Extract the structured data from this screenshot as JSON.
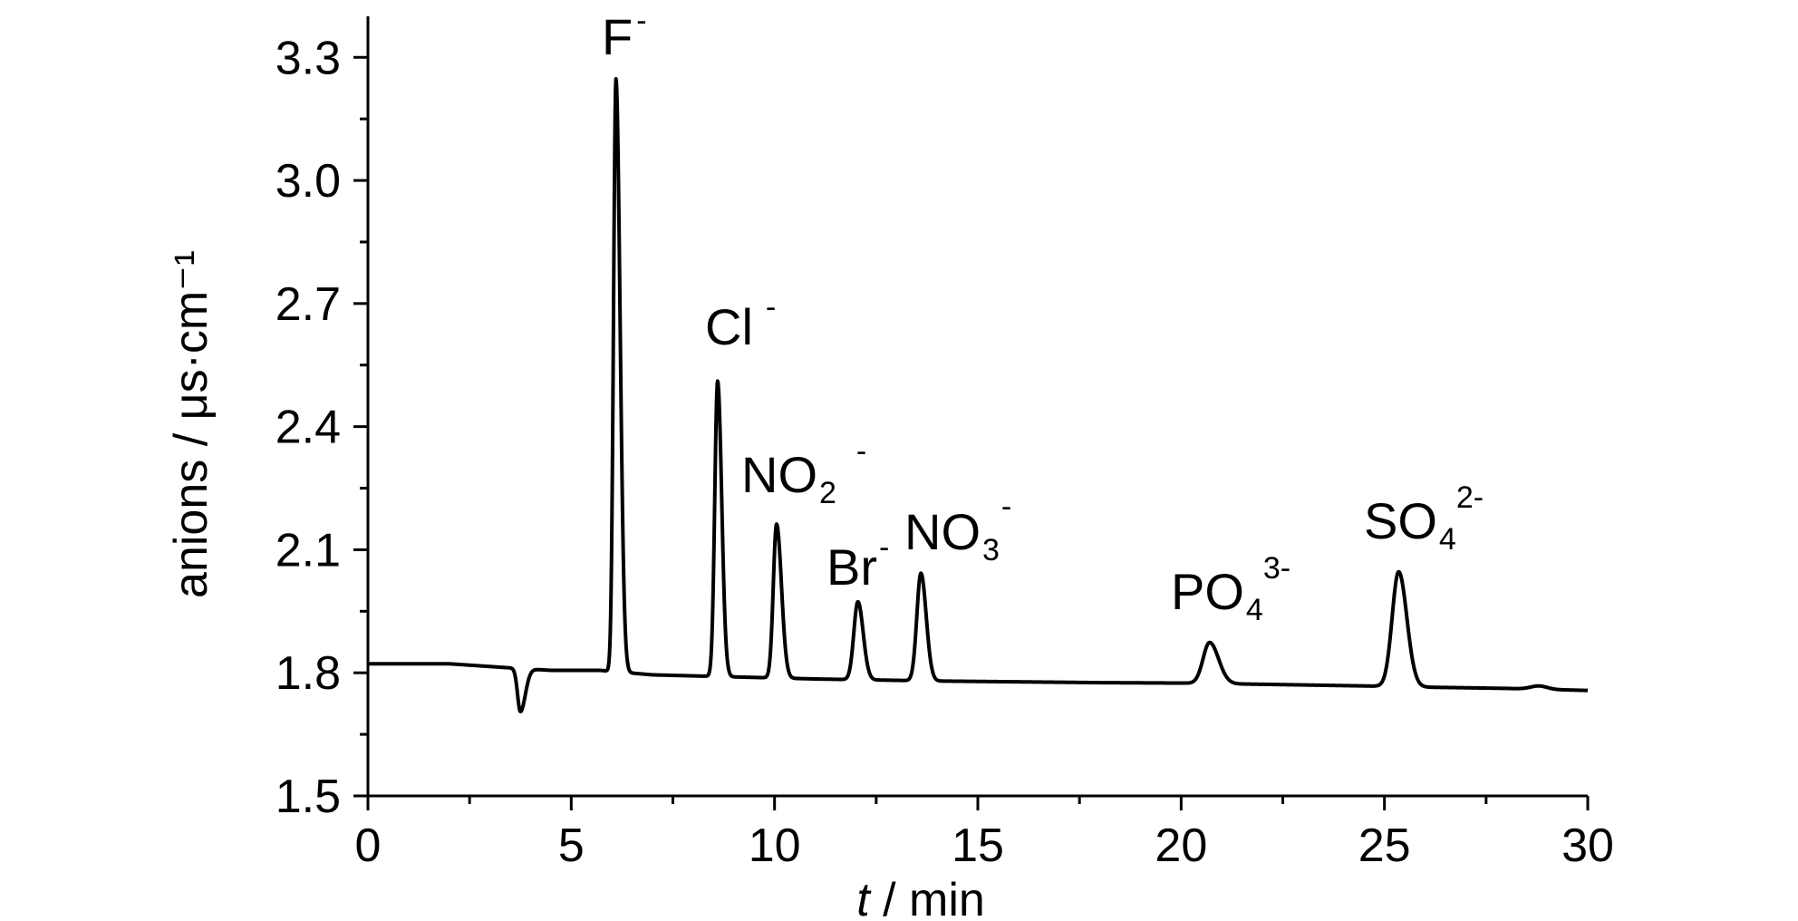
{
  "chart_data": {
    "type": "line",
    "xlabel": {
      "italic": "t",
      "rest": " / min"
    },
    "ylabel": "anions / μs·cm⁻¹",
    "xlim": [
      0,
      30
    ],
    "ylim": [
      1.5,
      3.4
    ],
    "xticks": [
      0,
      5,
      10,
      15,
      20,
      25,
      30
    ],
    "xtick_labels": [
      "0",
      "5",
      "10",
      "15",
      "20",
      "25",
      "30"
    ],
    "yticks": [
      1.5,
      1.8,
      2.1,
      2.4,
      2.7,
      3.0,
      3.3
    ],
    "ytick_labels": [
      "1.5",
      "1.8",
      "2.1",
      "2.4",
      "2.7",
      "3.0",
      "3.3"
    ],
    "grid": false,
    "series": [
      {
        "color": "#000000",
        "baseline": [
          [
            0,
            1.822
          ],
          [
            2.0,
            1.822
          ],
          [
            3.5,
            1.812
          ],
          [
            4.5,
            1.806
          ],
          [
            5.7,
            1.806
          ],
          [
            7.0,
            1.795
          ],
          [
            9.0,
            1.79
          ],
          [
            11.0,
            1.785
          ],
          [
            14.0,
            1.78
          ],
          [
            18.0,
            1.776
          ],
          [
            20.0,
            1.775
          ],
          [
            22.0,
            1.772
          ],
          [
            24.5,
            1.768
          ],
          [
            26.0,
            1.765
          ],
          [
            28.0,
            1.762
          ],
          [
            30.0,
            1.757
          ]
        ],
        "peaks": [
          {
            "x": 3.75,
            "height": -0.105,
            "w1": 0.07,
            "w2": 0.12
          },
          {
            "x": 6.1,
            "height": 1.445,
            "w1": 0.06,
            "w2": 0.1
          },
          {
            "x": 8.6,
            "height": 0.72,
            "w1": 0.07,
            "w2": 0.1
          },
          {
            "x": 10.05,
            "height": 0.375,
            "w1": 0.08,
            "w2": 0.12
          },
          {
            "x": 12.05,
            "height": 0.19,
            "w1": 0.1,
            "w2": 0.13
          },
          {
            "x": 13.6,
            "height": 0.262,
            "w1": 0.1,
            "w2": 0.13
          },
          {
            "x": 20.7,
            "height": 0.1,
            "w1": 0.16,
            "w2": 0.22
          },
          {
            "x": 25.35,
            "height": 0.28,
            "w1": 0.16,
            "w2": 0.2
          },
          {
            "x": 28.8,
            "height": 0.008,
            "w1": 0.2,
            "w2": 0.2
          }
        ]
      }
    ],
    "annotations": [
      {
        "main": "F",
        "sub": "",
        "sup": "-"
      },
      {
        "main": "Cl",
        "sub": "",
        "sup": "-"
      },
      {
        "main": "NO",
        "sub": "2",
        "sup": "-"
      },
      {
        "main": "Br",
        "sub": "",
        "sup": "-"
      },
      {
        "main": "NO",
        "sub": "3",
        "sup": "-"
      },
      {
        "main": "PO",
        "sub": "4",
        "sup": "3-"
      },
      {
        "main": "SO",
        "sub": "4",
        "sup": "2-"
      }
    ]
  }
}
